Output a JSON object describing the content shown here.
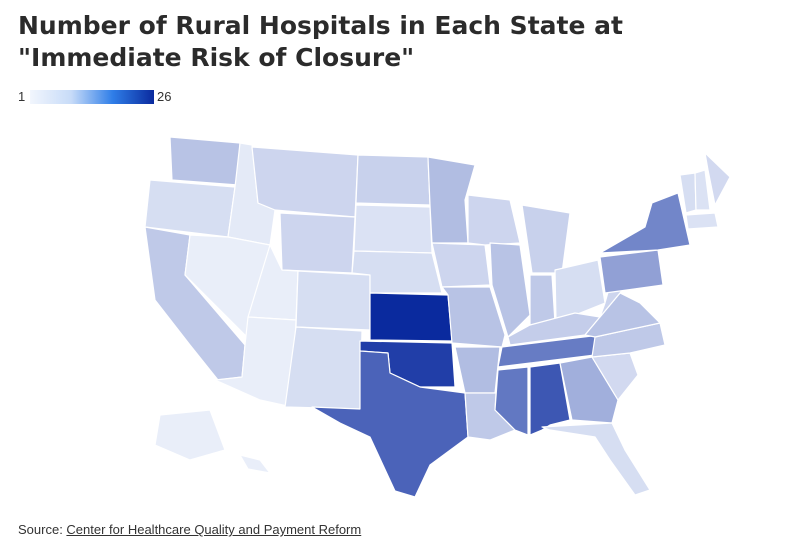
{
  "title": "Number of Rural Hospitals in Each State at \"Immediate Risk of Closure\"",
  "legend": {
    "min_label": "1",
    "max_label": "26",
    "colors": [
      "#f2f6fd",
      "#c7dbf8",
      "#2f7ee8",
      "#0a2a9e"
    ]
  },
  "map": {
    "type": "choropleth",
    "region": "United States",
    "value_range": [
      1,
      26
    ],
    "color_scale": {
      "low": "#f2f6fd",
      "high": "#0a2a9e"
    },
    "states": [
      {
        "state": "Washington",
        "level": 0.25
      },
      {
        "state": "Oregon",
        "level": 0.12
      },
      {
        "state": "California",
        "level": 0.22
      },
      {
        "state": "Idaho",
        "level": 0.06
      },
      {
        "state": "Nevada",
        "level": 0.04
      },
      {
        "state": "Montana",
        "level": 0.16
      },
      {
        "state": "Wyoming",
        "level": 0.16
      },
      {
        "state": "Utah",
        "level": 0.04
      },
      {
        "state": "Arizona",
        "level": 0.04
      },
      {
        "state": "Colorado",
        "level": 0.12
      },
      {
        "state": "New Mexico",
        "level": 0.12
      },
      {
        "state": "North Dakota",
        "level": 0.18
      },
      {
        "state": "South Dakota",
        "level": 0.1
      },
      {
        "state": "Nebraska",
        "level": 0.12
      },
      {
        "state": "Kansas",
        "level": 1.0
      },
      {
        "state": "Oklahoma",
        "level": 0.9
      },
      {
        "state": "Texas",
        "level": 0.72
      },
      {
        "state": "Minnesota",
        "level": 0.28
      },
      {
        "state": "Iowa",
        "level": 0.16
      },
      {
        "state": "Missouri",
        "level": 0.25
      },
      {
        "state": "Arkansas",
        "level": 0.28
      },
      {
        "state": "Louisiana",
        "level": 0.22
      },
      {
        "state": "Wisconsin",
        "level": 0.16
      },
      {
        "state": "Illinois",
        "level": 0.25
      },
      {
        "state": "Michigan",
        "level": 0.18
      },
      {
        "state": "Indiana",
        "level": 0.22
      },
      {
        "state": "Ohio",
        "level": 0.12
      },
      {
        "state": "Kentucky",
        "level": 0.2
      },
      {
        "state": "Tennessee",
        "level": 0.6
      },
      {
        "state": "Mississippi",
        "level": 0.62
      },
      {
        "state": "Alabama",
        "level": 0.78
      },
      {
        "state": "Georgia",
        "level": 0.35
      },
      {
        "state": "Florida",
        "level": 0.12
      },
      {
        "state": "South Carolina",
        "level": 0.14
      },
      {
        "state": "North Carolina",
        "level": 0.22
      },
      {
        "state": "Virginia",
        "level": 0.25
      },
      {
        "state": "West Virginia",
        "level": 0.16
      },
      {
        "state": "Pennsylvania",
        "level": 0.42
      },
      {
        "state": "New York",
        "level": 0.55
      },
      {
        "state": "Vermont",
        "level": 0.12
      },
      {
        "state": "New Hampshire",
        "level": 0.1
      },
      {
        "state": "Maine",
        "level": 0.14
      },
      {
        "state": "Massachusetts",
        "level": 0.1
      },
      {
        "state": "Alaska",
        "level": 0.04
      },
      {
        "state": "Hawaii",
        "level": 0.04
      }
    ]
  },
  "source": {
    "prefix": "Source: ",
    "link_text": "Center for Healthcare Quality and Payment Reform"
  }
}
